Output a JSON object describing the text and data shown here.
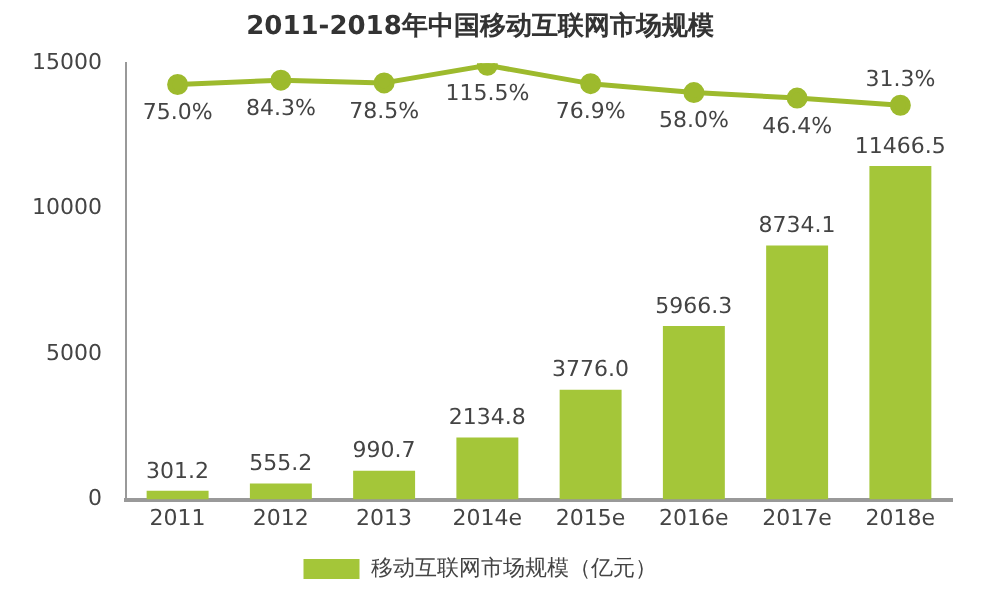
{
  "chart_data": {
    "type": "bar",
    "title": "2011-2018年中国移动互联网市场规模",
    "categories": [
      "2011",
      "2012",
      "2013",
      "2014e",
      "2015e",
      "2016e",
      "2017e",
      "2018e"
    ],
    "series": [
      {
        "name": "移动互联网市场规模（亿元）",
        "color": "#a4c639",
        "values": [
          301.2,
          555.2,
          990.7,
          2134.8,
          3776.0,
          5966.3,
          8734.1,
          11466.5
        ],
        "value_labels": [
          "301.2",
          "555.2",
          "990.7",
          "2134.8",
          "3776.0",
          "5966.3",
          "8734.1",
          "11466.5"
        ]
      },
      {
        "type": "line",
        "axis": "y2",
        "color": "#9dba2d",
        "marker": "circle",
        "values": [
          75.0,
          84.3,
          78.5,
          115.5,
          76.9,
          58.0,
          46.4,
          31.3
        ],
        "value_labels": [
          "75.0%",
          "84.3%",
          "78.5%",
          "115.5%",
          "76.9%",
          "58.0%",
          "46.4%",
          "31.3%"
        ]
      }
    ],
    "ylim": [
      0,
      15000
    ],
    "yticks": [
      0,
      5000,
      10000,
      15000
    ],
    "y2lim": [
      -800,
      120
    ],
    "legend": "bottom",
    "grid": false
  }
}
